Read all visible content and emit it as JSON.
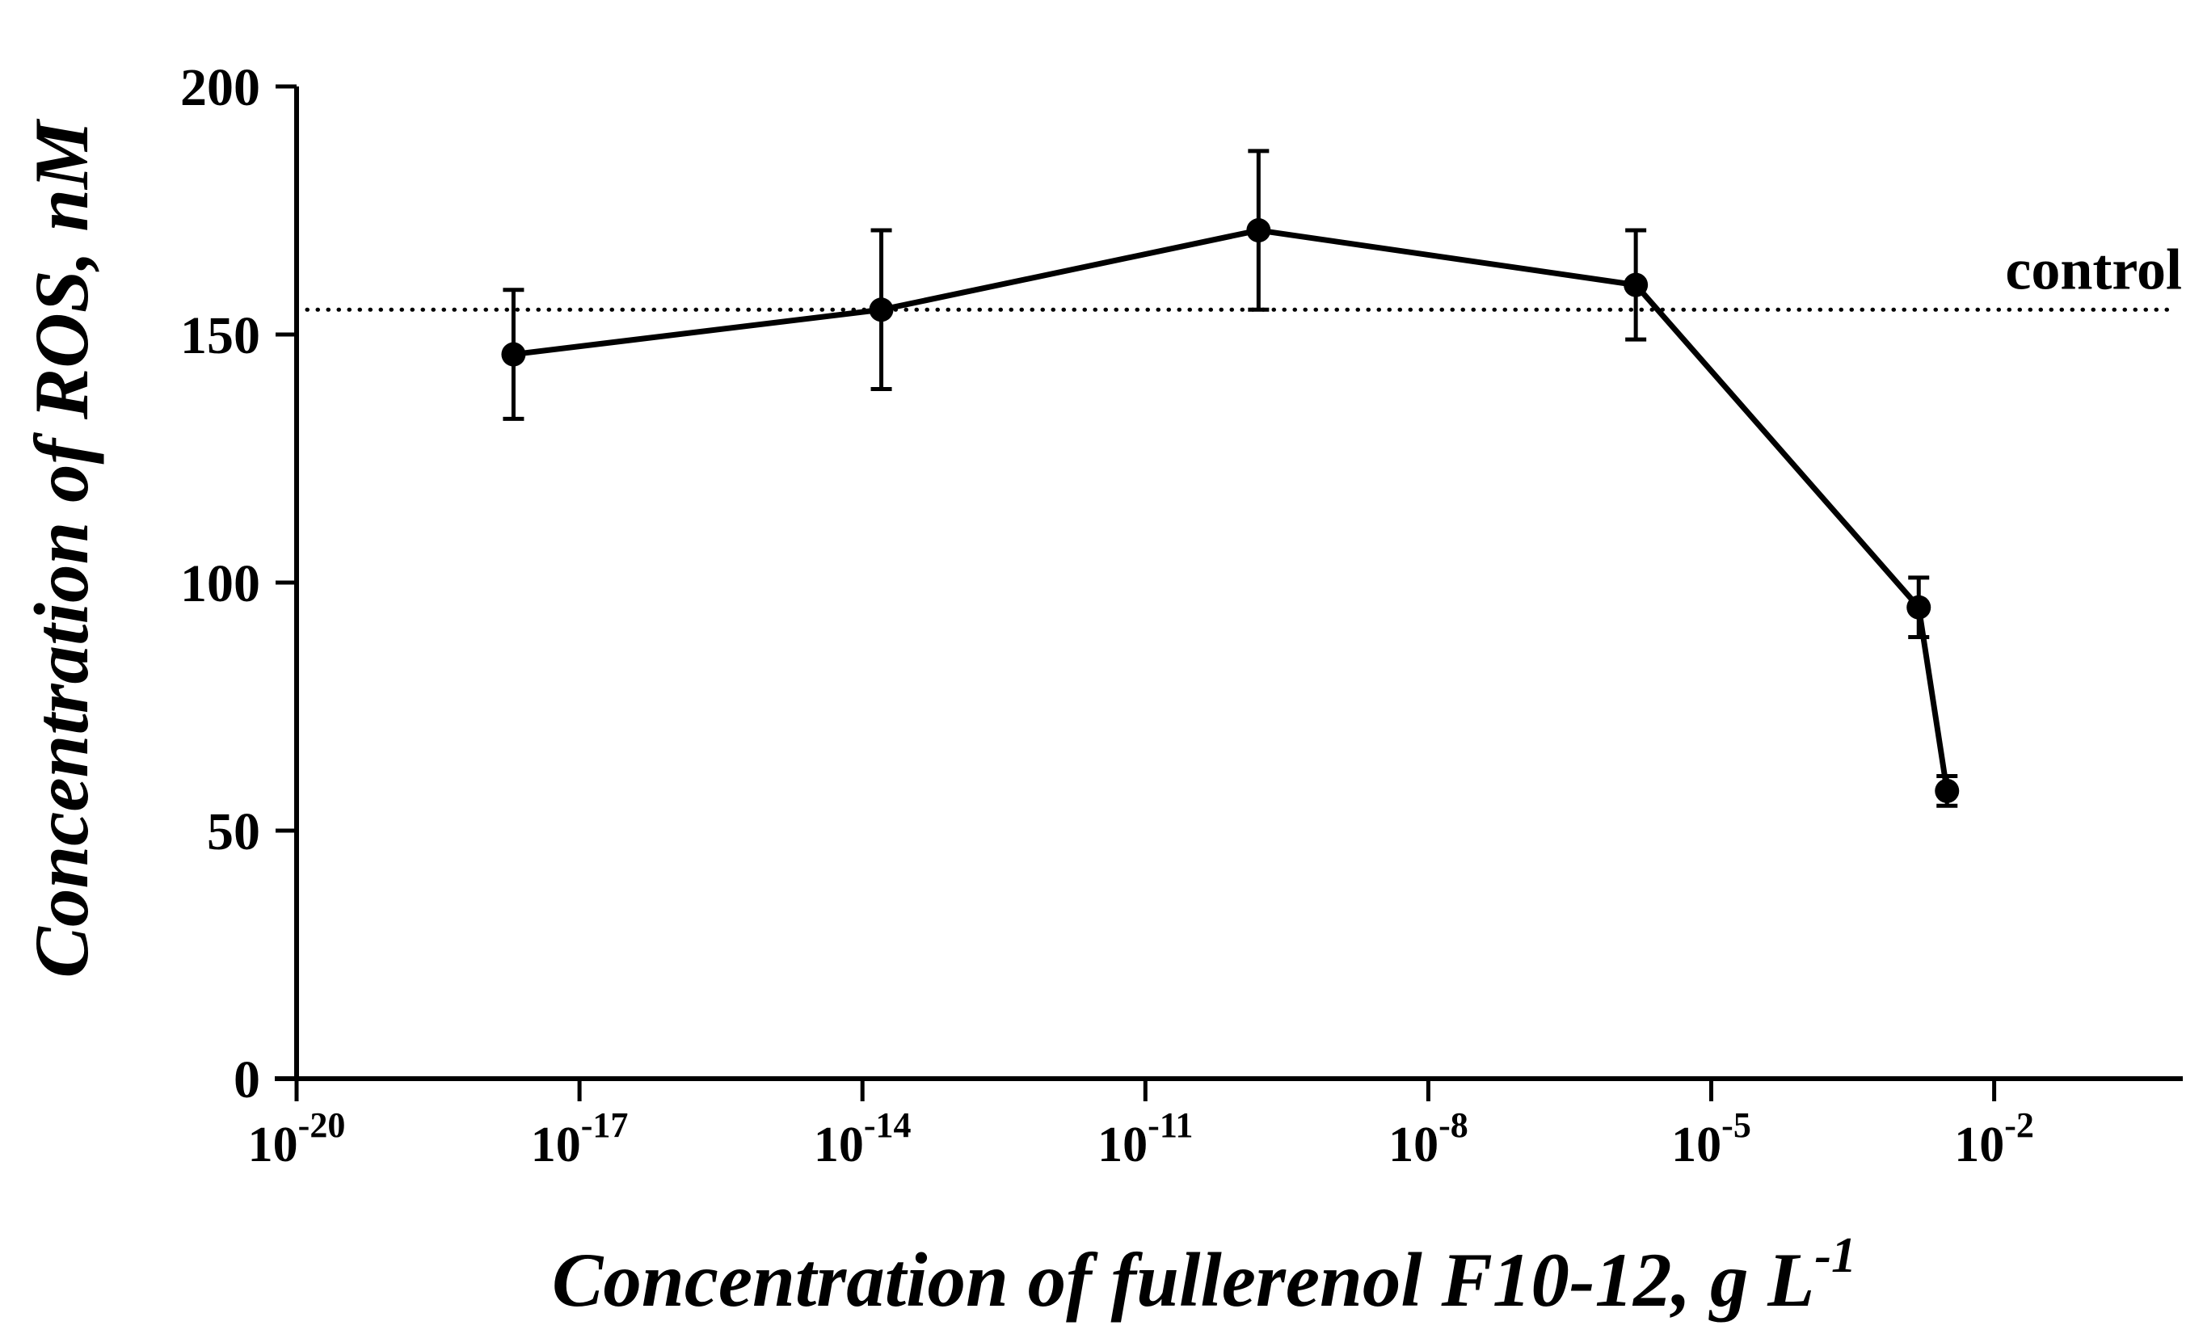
{
  "page": {
    "background_color": "#ffffff",
    "foreground_color": "#000000"
  },
  "chart_data": {
    "type": "line",
    "title": "",
    "ylabel": "Concentration of ROS, nM",
    "xlabel_main": "Concentration of fullerenol F10-12, g L",
    "xlabel_superscript": "-1",
    "x_axis": {
      "scale": "log",
      "tick_label_base": "10",
      "tick_exponents": [
        -20,
        -17,
        -14,
        -11,
        -8,
        -5,
        -2
      ],
      "range_exponents": [
        -20,
        0
      ],
      "grid": false
    },
    "y_axis": {
      "ticks": [
        0,
        50,
        100,
        150,
        200
      ],
      "range": [
        0,
        200
      ],
      "grid": false
    },
    "control_line": {
      "label": "control",
      "value": 155,
      "style": "dotted"
    },
    "series": [
      {
        "name": "ROS concentration",
        "color": "#000000",
        "marker": "circle",
        "points": [
          {
            "x_exponent": -17.7,
            "y": 146,
            "y_err": 13
          },
          {
            "x_exponent": -13.8,
            "y": 155,
            "y_err": 16
          },
          {
            "x_exponent": -9.8,
            "y": 171,
            "y_err": 16
          },
          {
            "x_exponent": -5.8,
            "y": 160,
            "y_err": 11
          },
          {
            "x_exponent": -2.8,
            "y": 95,
            "y_err": 6
          },
          {
            "x_exponent": -2.5,
            "y": 58,
            "y_err": 3
          }
        ]
      }
    ],
    "legend": null
  }
}
